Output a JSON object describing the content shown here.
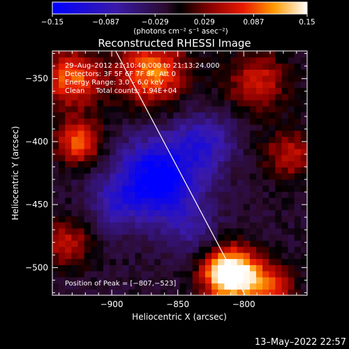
{
  "chart_data": {
    "type": "heatmap",
    "title": "Reconstructed RHESSI Image",
    "xlabel": "Heliocentric X (arcsec)",
    "ylabel": "Heliocentric Y (arcsec)",
    "xlim": [
      -945,
      -752
    ],
    "ylim": [
      -522,
      -328
    ],
    "x_ticks": [
      -900,
      -850,
      -800
    ],
    "y_ticks": [
      -350,
      -400,
      -450,
      -500
    ],
    "x_tick_labels": [
      "−900",
      "−850",
      "−800"
    ],
    "y_tick_labels": [
      "−350",
      "−400",
      "−450",
      "−500"
    ],
    "colorbar": {
      "min": -0.15,
      "max": 0.15,
      "ticks": [
        -0.15,
        -0.087,
        -0.029,
        0.029,
        0.087,
        0.15
      ],
      "tick_labels": [
        "−0.15",
        "−0.087",
        "−0.029",
        "0.029",
        "0.087",
        "0.15"
      ],
      "unit_label": "(photons cm⁻² s⁻¹ asec⁻²)",
      "colormap": "blue-purple-red-yellow-white"
    },
    "annotations": [
      "29–Aug–2012 21:10:40.000 to 21:13:24.000",
      "Detectors: 3F 5F 6F 7F 8F, Att 0",
      "Energy Range: 3.0 – 6.0 keV",
      "Clean     Total counts: 1.94E+04"
    ],
    "peak_label": "Position of Peak = [−807,−523]",
    "peak_position": [
      -807,
      -523
    ],
    "limb_line": [
      [
        -897,
        -328
      ],
      [
        -799,
        -522
      ]
    ],
    "blobs": [
      {
        "x": -810,
        "y": -505,
        "amp": 0.22,
        "sigma": 14
      },
      {
        "x": -780,
        "y": -515,
        "amp": 0.1,
        "sigma": 12
      },
      {
        "x": -925,
        "y": -400,
        "amp": 0.11,
        "sigma": 12
      },
      {
        "x": -870,
        "y": -345,
        "amp": 0.12,
        "sigma": 18
      },
      {
        "x": -930,
        "y": -350,
        "amp": 0.11,
        "sigma": 16
      },
      {
        "x": -790,
        "y": -352,
        "amp": 0.08,
        "sigma": 16
      },
      {
        "x": -765,
        "y": -410,
        "amp": 0.07,
        "sigma": 14
      },
      {
        "x": -935,
        "y": -480,
        "amp": 0.07,
        "sigma": 14
      },
      {
        "x": -865,
        "y": -430,
        "amp": -0.15,
        "sigma": 22
      },
      {
        "x": -830,
        "y": -400,
        "amp": -0.07,
        "sigma": 16
      },
      {
        "x": -900,
        "y": -450,
        "amp": -0.05,
        "sigma": 14
      },
      {
        "x": -840,
        "y": -470,
        "amp": -0.04,
        "sigma": 14
      }
    ],
    "base_level": -0.015
  },
  "footer": {
    "timestamp": "13–May–2022 22:57"
  }
}
